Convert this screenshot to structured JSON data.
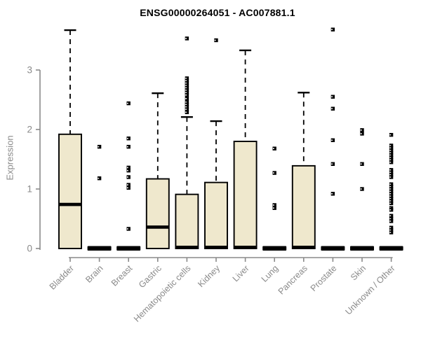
{
  "chart_data": {
    "type": "boxplot",
    "title": "ENSG00000264051 - AC007881.1",
    "ylabel": "Expression",
    "xlabel": "",
    "yticks": [
      0,
      1,
      2,
      3
    ],
    "ylim": [
      0,
      3.75
    ],
    "grid": false,
    "legend": false,
    "box_fill_color": "#EFE8CD",
    "box_stroke_color": "#000000",
    "axis_color": "#8a8a8a",
    "categories": [
      "Bladder",
      "Brain",
      "Breast",
      "Gastric",
      "Hematopoietic cells",
      "Kidney",
      "Liver",
      "Lung",
      "Pancreas",
      "Prostate",
      "Skin",
      "Unknown / Other"
    ],
    "series": [
      {
        "category": "Bladder",
        "q1": 0,
        "median": 0.74,
        "q3": 1.92,
        "whisker_low": 0,
        "whisker_high": 3.67,
        "outliers": []
      },
      {
        "category": "Brain",
        "q1": 0,
        "median": 0,
        "q3": 0,
        "whisker_low": 0,
        "whisker_high": 0,
        "outliers": [
          1.71,
          1.18
        ]
      },
      {
        "category": "Breast",
        "q1": 0,
        "median": 0,
        "q3": 0,
        "whisker_low": 0,
        "whisker_high": 0,
        "outliers": [
          2.44,
          1.85,
          1.71,
          1.36,
          1.31,
          1.2,
          1.07,
          1.02,
          0.33
        ]
      },
      {
        "category": "Gastric",
        "q1": 0,
        "median": 0.36,
        "q3": 1.17,
        "whisker_low": 0,
        "whisker_high": 2.61,
        "outliers": []
      },
      {
        "category": "Hematopoietic cells",
        "q1": 0,
        "median": 0.02,
        "q3": 0.91,
        "whisker_low": 0,
        "whisker_high": 2.21,
        "outliers": [
          3.53,
          2.86,
          2.82,
          2.78,
          2.74,
          2.7,
          2.66,
          2.62,
          2.58,
          2.52,
          2.46,
          2.42,
          2.38,
          2.34,
          2.29
        ]
      },
      {
        "category": "Kidney",
        "q1": 0,
        "median": 0.02,
        "q3": 1.11,
        "whisker_low": 0,
        "whisker_high": 2.14,
        "outliers": [
          3.5
        ]
      },
      {
        "category": "Liver",
        "q1": 0,
        "median": 0.02,
        "q3": 1.8,
        "whisker_low": 0,
        "whisker_high": 3.33,
        "outliers": []
      },
      {
        "category": "Lung",
        "q1": 0,
        "median": 0,
        "q3": 0,
        "whisker_low": 0,
        "whisker_high": 0,
        "outliers": [
          1.68,
          1.27,
          0.73,
          0.68
        ]
      },
      {
        "category": "Pancreas",
        "q1": 0,
        "median": 0.02,
        "q3": 1.39,
        "whisker_low": 0,
        "whisker_high": 2.62,
        "outliers": []
      },
      {
        "category": "Prostate",
        "q1": 0,
        "median": 0,
        "q3": 0,
        "whisker_low": 0,
        "whisker_high": 0,
        "outliers": [
          3.68,
          2.55,
          2.35,
          1.82,
          1.42,
          0.92
        ]
      },
      {
        "category": "Skin",
        "q1": 0,
        "median": 0,
        "q3": 0,
        "whisker_low": 0,
        "whisker_high": 0,
        "outliers": [
          1.99,
          1.93,
          1.42,
          1.0
        ]
      },
      {
        "category": "Unknown / Other",
        "q1": 0,
        "median": 0,
        "q3": 0,
        "whisker_low": 0,
        "whisker_high": 0,
        "outliers": [
          1.91,
          1.73,
          1.69,
          1.65,
          1.61,
          1.57,
          1.53,
          1.49,
          1.45,
          1.32,
          1.28,
          1.24,
          1.2,
          1.08,
          1.04,
          1.0,
          0.96,
          0.92,
          0.88,
          0.84,
          0.8,
          0.76,
          0.68,
          0.65,
          0.55,
          0.5,
          0.46,
          0.35,
          0.31,
          0.27
        ]
      }
    ]
  }
}
